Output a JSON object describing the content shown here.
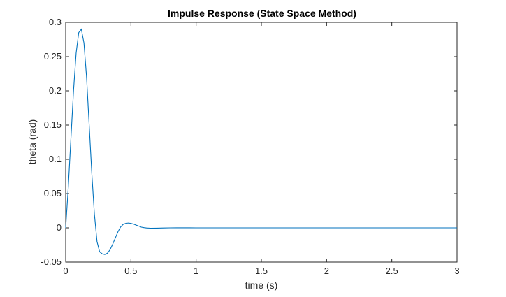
{
  "chart_data": {
    "type": "line",
    "title": "Impulse Response (State Space Method)",
    "xlabel": "time (s)",
    "ylabel": "theta (rad)",
    "xlim": [
      0,
      3
    ],
    "ylim": [
      -0.05,
      0.3
    ],
    "xticks": [
      0,
      0.5,
      1,
      1.5,
      2,
      2.5,
      3
    ],
    "xtick_labels": [
      "0",
      "0.5",
      "1",
      "1.5",
      "2",
      "2.5",
      "3"
    ],
    "yticks": [
      -0.05,
      0,
      0.05,
      0.1,
      0.15,
      0.2,
      0.25,
      0.3
    ],
    "ytick_labels": [
      "-0.05",
      "0",
      "0.05",
      "0.1",
      "0.15",
      "0.2",
      "0.25",
      "0.3"
    ],
    "grid": false,
    "box": true,
    "line_color": "#0072BD",
    "series": [
      {
        "x": [
          0,
          0.02,
          0.04,
          0.06,
          0.08,
          0.1,
          0.12,
          0.14,
          0.16,
          0.18,
          0.2,
          0.22,
          0.24,
          0.26,
          0.28,
          0.3,
          0.32,
          0.34,
          0.36,
          0.38,
          0.4,
          0.42,
          0.44,
          0.46,
          0.48,
          0.5,
          0.52,
          0.54,
          0.56,
          0.58,
          0.6,
          0.62,
          0.65,
          0.7,
          0.75,
          0.8,
          0.85,
          0.9,
          0.95,
          1,
          1.1,
          1.2,
          1.3,
          1.4,
          1.5,
          1.6,
          1.7,
          1.8,
          1.9,
          2,
          2.2,
          2.4,
          2.6,
          2.8,
          3
        ],
        "y": [
          0,
          0.06,
          0.13,
          0.2,
          0.255,
          0.285,
          0.29,
          0.27,
          0.22,
          0.15,
          0.08,
          0.02,
          -0.02,
          -0.035,
          -0.038,
          -0.039,
          -0.037,
          -0.032,
          -0.024,
          -0.015,
          -0.006,
          0.001,
          0.005,
          0.0065,
          0.007,
          0.0065,
          0.0055,
          0.004,
          0.0025,
          0.001,
          0.0003,
          -0.0002,
          -0.0005,
          -0.0004,
          -0.0002,
          0,
          0.0001,
          0.0001,
          0.0001,
          0,
          0,
          0,
          0,
          0,
          0,
          0,
          0,
          0,
          0,
          0,
          0,
          0,
          0,
          0,
          0
        ]
      }
    ]
  }
}
